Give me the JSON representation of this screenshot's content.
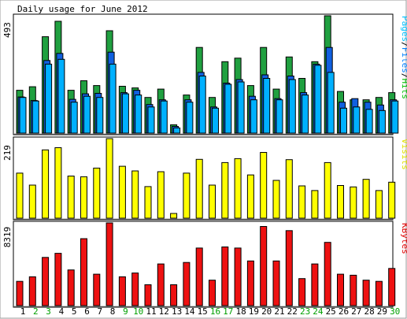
{
  "chart_data": {
    "type": "bar",
    "title": "Daily usage for June 2012",
    "categories": [
      "1",
      "2",
      "3",
      "4",
      "5",
      "6",
      "7",
      "8",
      "9",
      "10",
      "11",
      "12",
      "13",
      "14",
      "15",
      "16",
      "17",
      "18",
      "19",
      "20",
      "21",
      "22",
      "23",
      "24",
      "25",
      "26",
      "27",
      "28",
      "29",
      "30"
    ],
    "weekend_days": [
      "2",
      "3",
      "9",
      "10",
      "16",
      "17",
      "23",
      "24",
      "30"
    ],
    "panels": [
      {
        "name": "traffic",
        "max_label": "493",
        "max": 493,
        "legend": [
          {
            "text": "Pages",
            "color": "#00c0ff"
          },
          {
            "text": "/",
            "color": "#000000"
          },
          {
            "text": "Files",
            "color": "#0080ff"
          },
          {
            "text": "/",
            "color": "#000000"
          },
          {
            "text": "Hits",
            "color": "#00c000"
          }
        ],
        "series": [
          {
            "name": "Hits",
            "color": "#20a040",
            "values": [
              180,
              195,
              405,
              470,
              180,
              220,
              200,
              430,
              197,
              190,
              150,
              185,
              35,
              160,
              360,
              150,
              300,
              315,
              200,
              360,
              185,
              320,
              230,
              300,
              493,
              175,
              140,
              140,
              150,
              170
            ]
          },
          {
            "name": "Files",
            "color": "#1060e0",
            "values": [
              152,
              137,
              305,
              335,
              142,
              165,
              167,
              340,
              170,
              180,
              120,
              140,
              28,
              140,
              255,
              110,
              210,
              225,
              155,
              245,
              145,
              240,
              170,
              290,
              360,
              130,
              145,
              130,
              118,
              140
            ]
          },
          {
            "name": "Pages",
            "color": "#00b0ff",
            "values": [
              150,
              135,
              290,
              310,
              130,
              155,
              150,
              290,
              165,
              160,
              110,
              135,
              22,
              130,
              240,
              105,
              205,
              215,
              140,
              230,
              140,
              225,
              160,
              285,
              255,
              105,
              110,
              100,
              95,
              135
            ]
          }
        ]
      },
      {
        "name": "visits",
        "max_label": "219",
        "max": 219,
        "legend": [
          {
            "text": "Visits",
            "color": "#e0e000"
          }
        ],
        "series": [
          {
            "name": "Visits",
            "color": "#ffff00",
            "values": [
              124,
              91,
              188,
              194,
              116,
              114,
              138,
              219,
              143,
              130,
              87,
              128,
              13,
              124,
              162,
              91,
              153,
              164,
              119,
              181,
              104,
              161,
              89,
              76,
              153,
              90,
              86,
              107,
              76,
              99
            ]
          }
        ]
      },
      {
        "name": "kbytes",
        "max_label": "8319",
        "max": 8319,
        "legend": [
          {
            "text": "KBytes",
            "color": "#e00000"
          }
        ],
        "series": [
          {
            "name": "KBytes",
            "color": "#ee1111",
            "values": [
              2440,
              2902,
              4852,
              5260,
              3587,
              6737,
              3164,
              8319,
              2902,
              3284,
              2099,
              4191,
              2099,
              4343,
              5794,
              2559,
              5906,
              5794,
              4496,
              7962,
              4496,
              7544,
              2721,
              4191,
              6365,
              3164,
              3060,
              2559,
              2440,
              3740
            ]
          }
        ]
      }
    ]
  }
}
